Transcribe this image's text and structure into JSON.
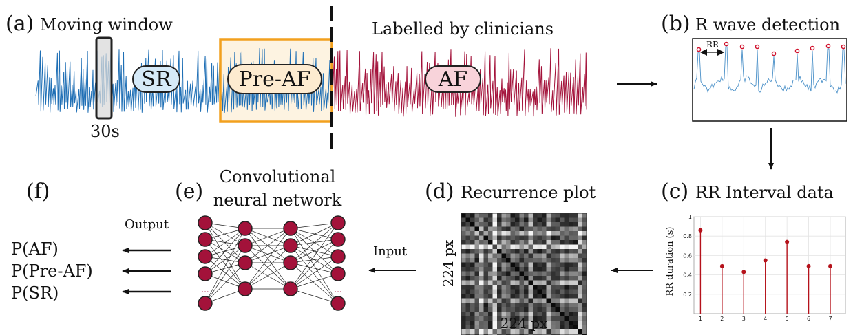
{
  "panel_a": {
    "letter": "(a)",
    "title": "Moving window",
    "clinician_label": "Labelled by clinicians",
    "window_duration": "30s",
    "segments": {
      "sr": "SR",
      "pre_af": "Pre-AF",
      "af": "AF"
    },
    "colors": {
      "sr": "#1f6fb5",
      "af": "#a3123a",
      "window_box": "#f2a01e",
      "sr_badge": "#d6eaf8",
      "pre_af_badge": "#fdebd0",
      "af_badge": "#f8d3da"
    }
  },
  "panel_b": {
    "letter": "(b)",
    "title": "R wave detection",
    "rr_label": "RR"
  },
  "panel_c": {
    "letter": "(c)",
    "title": "RR Interval data",
    "ylabel": "RR duration (s)"
  },
  "panel_d": {
    "letter": "(d)",
    "title": "Recurrence plot",
    "x_size": "224 px",
    "y_size": "224 px"
  },
  "panel_e": {
    "letter": "(e)",
    "title_line1": "Convolutional",
    "title_line2": "neural network",
    "input_label": "Input",
    "output_label": "Output",
    "ellipsis": "...",
    "node_color": "#a3123a"
  },
  "panel_f": {
    "letter": "(f)",
    "outputs": [
      "P(AF)",
      "P(Pre-AF)",
      "P(SR)"
    ]
  },
  "chart_data": {
    "type": "scatter",
    "x": [
      1,
      2,
      3,
      4,
      5,
      6,
      7
    ],
    "values": [
      0.86,
      0.49,
      0.43,
      0.55,
      0.74,
      0.49,
      0.49
    ],
    "xlim": [
      0.7,
      7.7
    ],
    "ylim": [
      0,
      1
    ],
    "xticks": [
      "1",
      "2",
      "3",
      "4",
      "5",
      "6",
      "7"
    ],
    "yticks": [
      "0.2",
      "0.4",
      "0.6",
      "0.8",
      "1"
    ],
    "ylabel": "RR duration (s)",
    "grid": true,
    "color": "#b5121b"
  }
}
